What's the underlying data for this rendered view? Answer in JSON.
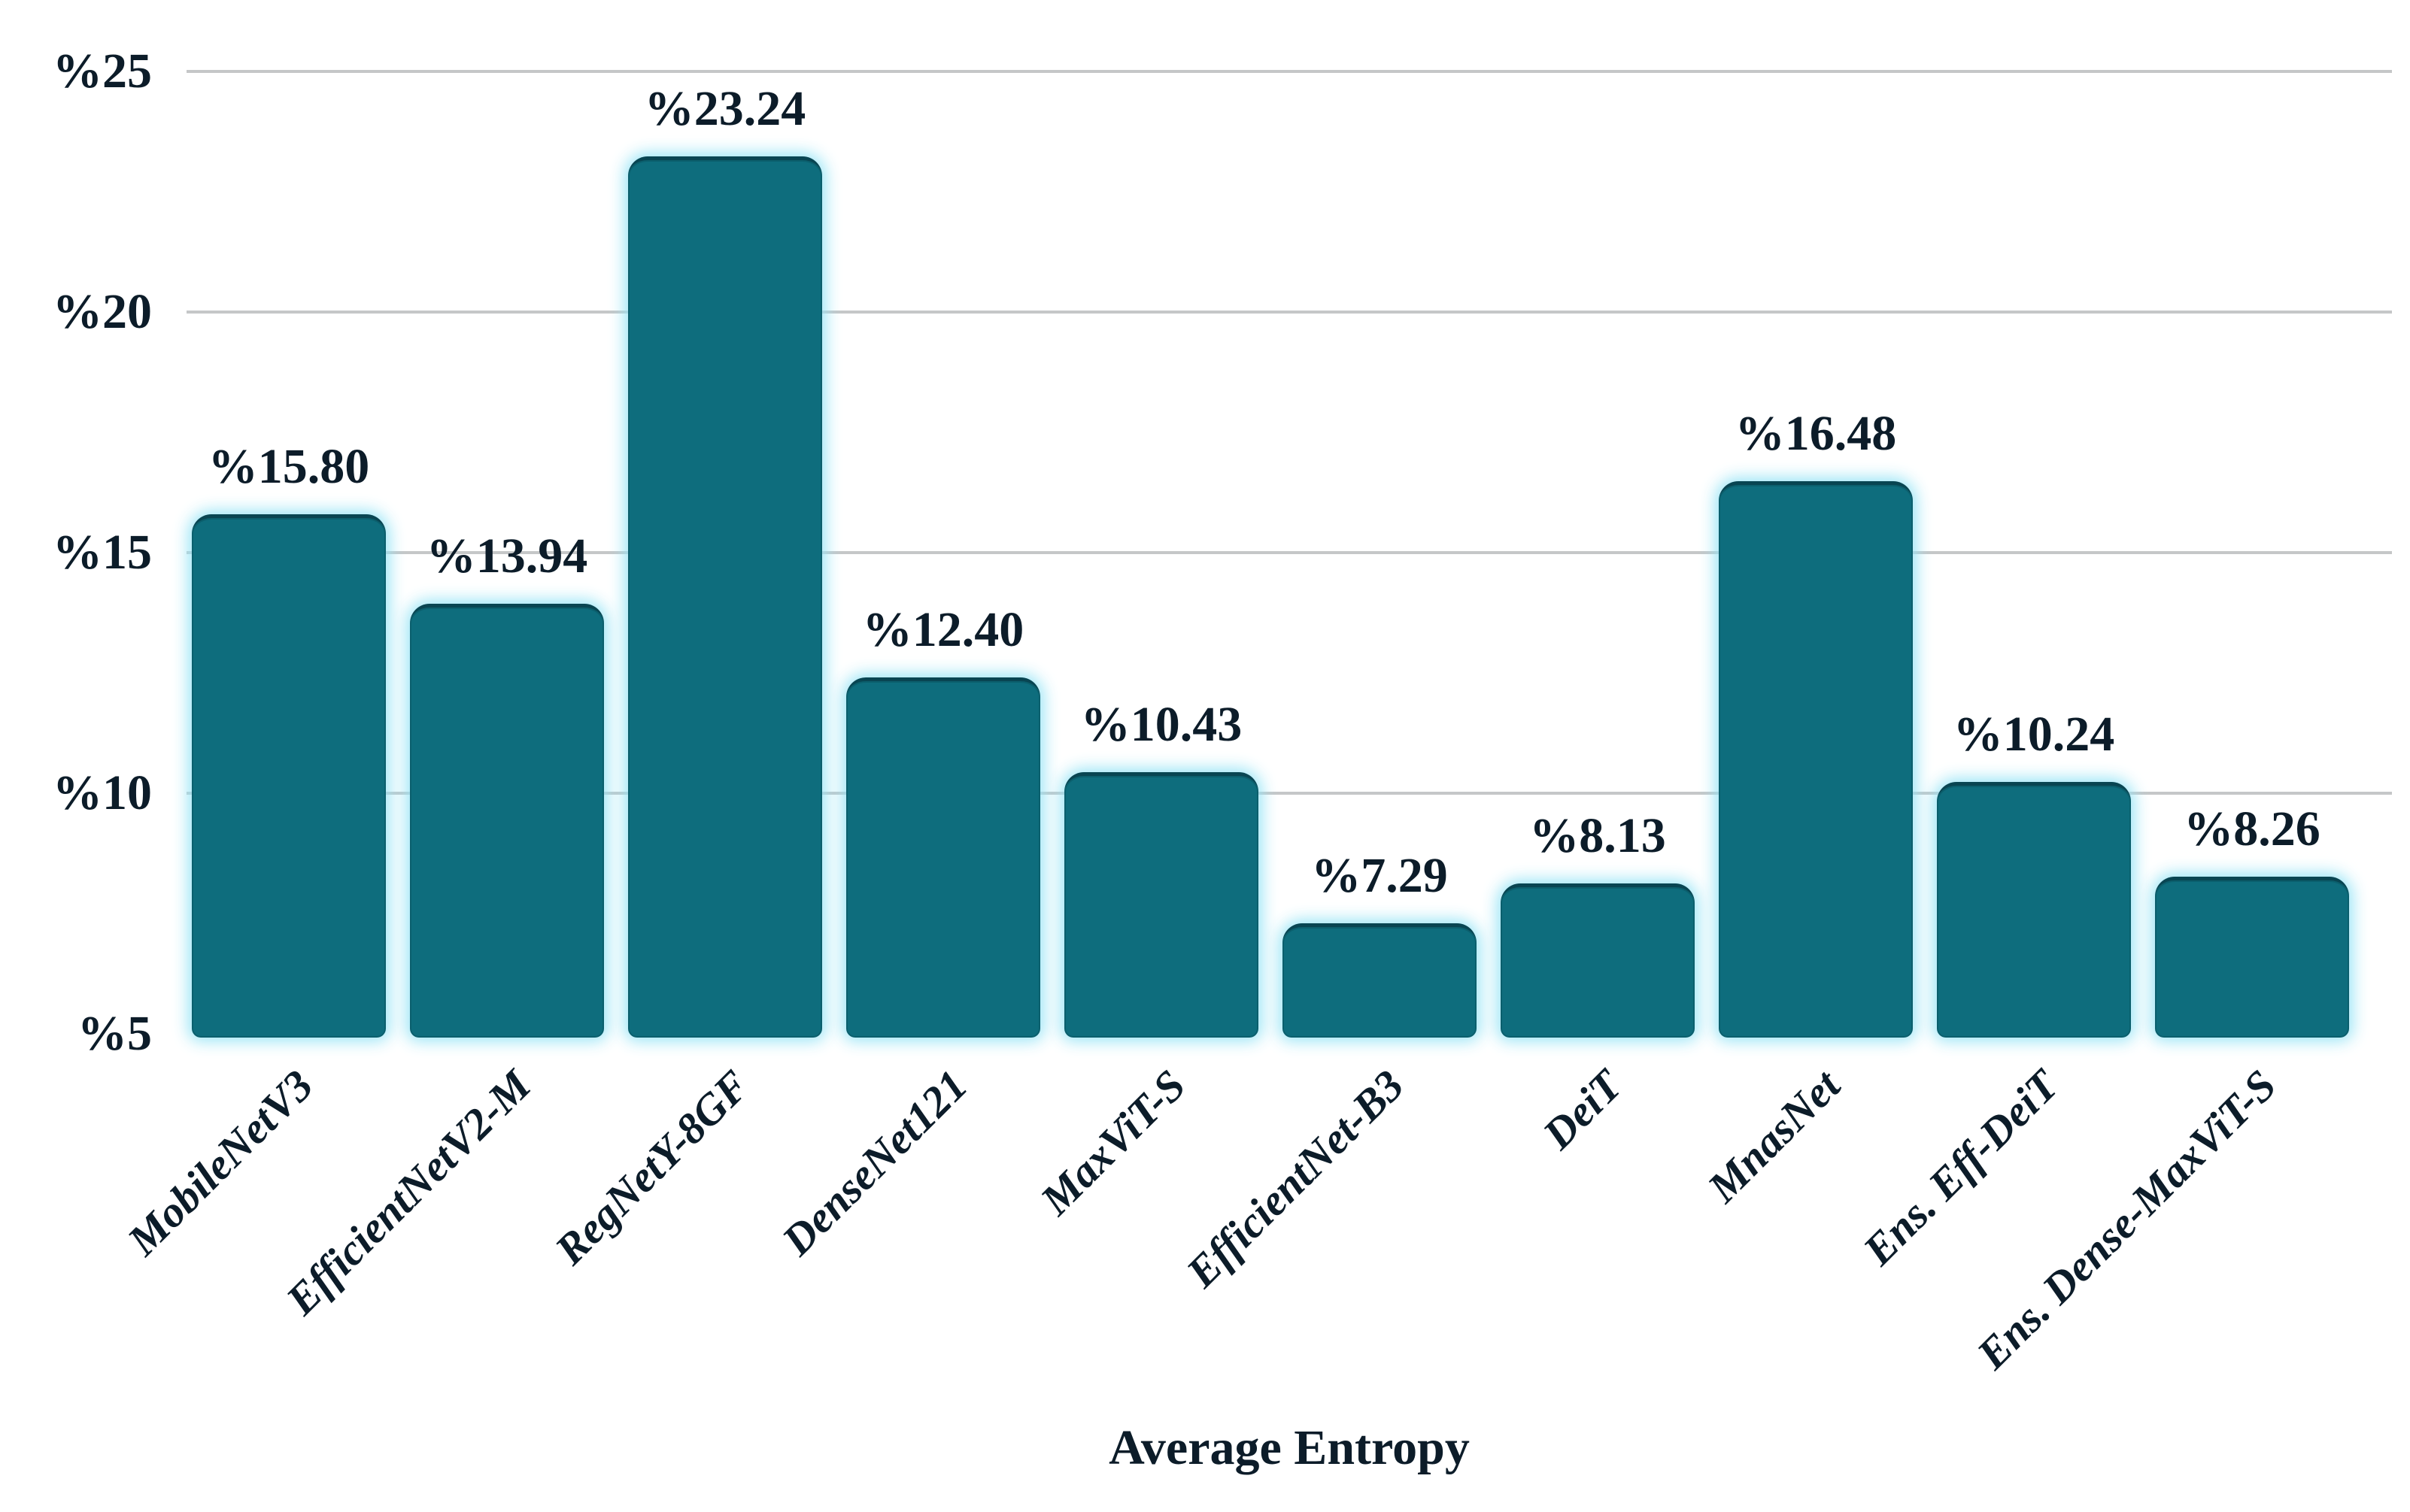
{
  "chart_data": {
    "type": "bar",
    "title": "",
    "xlabel": "Average Entropy",
    "ylabel": "",
    "categories": [
      "MobileNetV3",
      "EfficientNetV2-M",
      "RegNetY-8GF",
      "DenseNet121",
      "MaxViT-S",
      "EfficientNet-B3",
      "DeiT",
      "MnasNet",
      "Ens. Eff-DeiT",
      "Ens. Dense-MaxViT-S"
    ],
    "values": [
      15.8,
      13.94,
      23.24,
      12.4,
      10.43,
      7.29,
      8.13,
      16.48,
      10.24,
      8.26
    ],
    "bar_labels": [
      "%15.80",
      "%13.94",
      "%23.24",
      "%12.40",
      "%10.43",
      "%7.29",
      "%8.13",
      "%16.48",
      "%10.24",
      "%8.26"
    ],
    "y_ticks": [
      {
        "value": 5,
        "label": "%5"
      },
      {
        "value": 10,
        "label": "%10"
      },
      {
        "value": 15,
        "label": "%15"
      },
      {
        "value": 20,
        "label": "%20"
      },
      {
        "value": 25,
        "label": "%25"
      }
    ],
    "ylim": [
      5,
      25
    ],
    "grid": "horizontal",
    "legend": "none",
    "bar_color": "#0e6d7d",
    "glow_color": "#96e4f6",
    "gridline_color": "#c5c7c8",
    "text_color": "#0c1c29"
  }
}
